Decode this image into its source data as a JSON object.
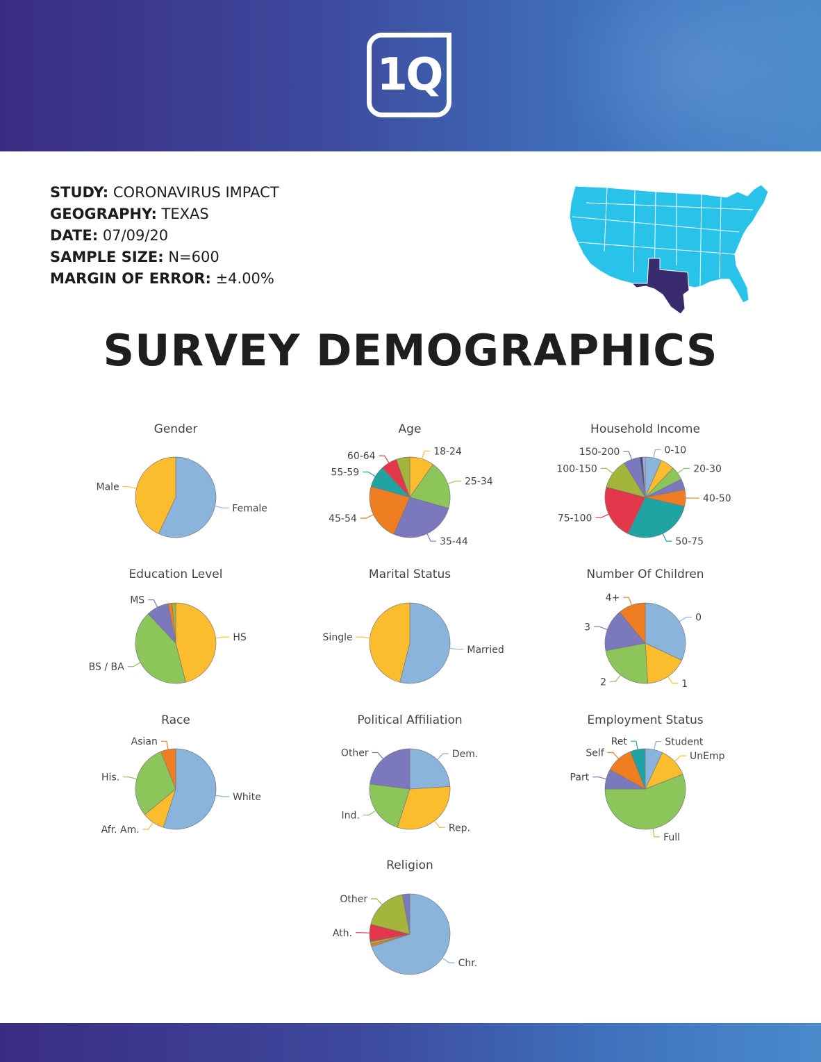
{
  "header": {
    "logo_text": "1Q"
  },
  "study": {
    "rows": [
      {
        "label": "STUDY:",
        "value": "CORONAVIRUS IMPACT"
      },
      {
        "label": "GEOGRAPHY:",
        "value": "TEXAS"
      },
      {
        "label": "DATE:",
        "value": "07/09/20"
      },
      {
        "label": "SAMPLE SIZE:",
        "value": "N=600"
      },
      {
        "label": "MARGIN OF ERROR:",
        "value": "±4.00%"
      }
    ]
  },
  "map": {
    "base_color": "#29c3ea",
    "highlight_color": "#3a2a6e",
    "highlight_state": "Texas"
  },
  "main_title": "SURVEY DEMOGRAPHICS",
  "colors": {
    "blue": "#8ab4dc",
    "yellow": "#fbbd2e",
    "green": "#8cc65a",
    "purple": "#7b78bd",
    "orange": "#ef7d22",
    "teal": "#1fa3a3",
    "red": "#e2364a",
    "olive": "#a4b53b",
    "navy": "#2d4f8a",
    "lavender": "#b9a6d6"
  },
  "chart_data": [
    {
      "type": "pie",
      "title": "Gender",
      "categories": [
        "Female",
        "Male"
      ],
      "values": [
        57,
        43
      ],
      "colors": [
        "blue",
        "yellow"
      ]
    },
    {
      "type": "pie",
      "title": "Age",
      "categories": [
        "18-24",
        "25-34",
        "35-44",
        "45-54",
        "55-59",
        "60-64",
        ""
      ],
      "values": [
        9,
        18,
        25,
        21,
        8,
        6,
        5
      ],
      "colors": [
        "yellow",
        "green",
        "purple",
        "orange",
        "teal",
        "red",
        "olive"
      ]
    },
    {
      "type": "pie",
      "title": "Household Income",
      "categories": [
        "0-10",
        "",
        "20-30",
        "",
        "40-50",
        "50-75",
        "75-100",
        "100-150",
        "150-200",
        "",
        ""
      ],
      "values": [
        6,
        5,
        5,
        4,
        6,
        26,
        20,
        11,
        6,
        1,
        1
      ],
      "colors": [
        "blue",
        "yellow",
        "green",
        "purple",
        "orange",
        "teal",
        "red",
        "olive",
        "purple",
        "navy",
        "lavender"
      ]
    },
    {
      "type": "pie",
      "title": "Education Level",
      "categories": [
        "HS",
        "BS / BA",
        "MS",
        "",
        ""
      ],
      "values": [
        46,
        42,
        9,
        1.5,
        1.5
      ],
      "colors": [
        "yellow",
        "green",
        "purple",
        "orange",
        "olive"
      ]
    },
    {
      "type": "pie",
      "title": "Marital Status",
      "categories": [
        "Married",
        "Single"
      ],
      "values": [
        54,
        46
      ],
      "colors": [
        "blue",
        "yellow"
      ]
    },
    {
      "type": "pie",
      "title": "Number Of Children",
      "categories": [
        "0",
        "1",
        "2",
        "3",
        "4+"
      ],
      "values": [
        32,
        17,
        23,
        17,
        11
      ],
      "colors": [
        "blue",
        "yellow",
        "green",
        "purple",
        "orange"
      ]
    },
    {
      "type": "pie",
      "title": "Race",
      "categories": [
        "White",
        "Afr. Am.",
        "His.",
        "Asian"
      ],
      "values": [
        55,
        9,
        30,
        6
      ],
      "colors": [
        "blue",
        "yellow",
        "green",
        "orange"
      ]
    },
    {
      "type": "pie",
      "title": "Political Affiliation",
      "categories": [
        "Dem.",
        "Rep.",
        "Ind.",
        "Other"
      ],
      "values": [
        24,
        31,
        22,
        23
      ],
      "colors": [
        "blue",
        "yellow",
        "green",
        "purple"
      ]
    },
    {
      "type": "pie",
      "title": "Employment Status",
      "categories": [
        "Student",
        "UnEmp",
        "Full",
        "Part",
        "Self",
        "Ret"
      ],
      "values": [
        7,
        12,
        56,
        8,
        11,
        6
      ],
      "colors": [
        "blue",
        "yellow",
        "green",
        "purple",
        "orange",
        "teal"
      ]
    },
    {
      "type": "pie",
      "title": "Religion",
      "categories": [
        "Chr.",
        "",
        "",
        "Ath.",
        "Other",
        ""
      ],
      "values": [
        70,
        1,
        1,
        7,
        18,
        3
      ],
      "colors": [
        "blue",
        "orange",
        "olive",
        "red",
        "olive",
        "purple"
      ]
    }
  ]
}
